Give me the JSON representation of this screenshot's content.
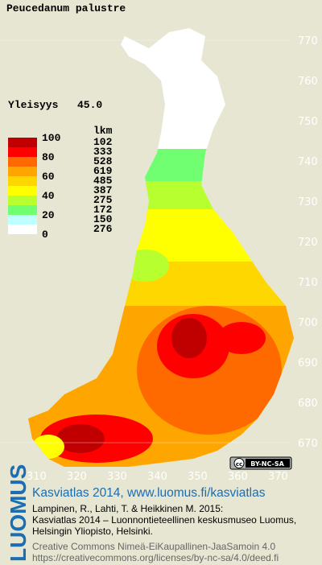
{
  "title": "Peucedanum palustre",
  "frequency": {
    "label": "Yleisyys",
    "value": "45.0"
  },
  "legend": {
    "count_header": "lkm",
    "scale_labels": [
      100,
      80,
      60,
      40,
      20,
      0
    ],
    "classes": [
      {
        "color": "#c00000",
        "count": 102
      },
      {
        "color": "#ff0000",
        "count": 333
      },
      {
        "color": "#ff6a00",
        "count": 528
      },
      {
        "color": "#ffa500",
        "count": 619
      },
      {
        "color": "#ffd700",
        "count": 485
      },
      {
        "color": "#ffff00",
        "count": 387
      },
      {
        "color": "#b8ff30",
        "count": 275
      },
      {
        "color": "#70ff70",
        "count": 172
      },
      {
        "color": "#c0ffff",
        "count": 150
      },
      {
        "color": "#ffffff",
        "count": 276
      }
    ]
  },
  "grid": {
    "northing": [
      770,
      760,
      750,
      740,
      730,
      720,
      710,
      700,
      690,
      680,
      670
    ],
    "easting": [
      310,
      320,
      330,
      340,
      350,
      360,
      370
    ]
  },
  "license_badge": "BY-NC-SA",
  "logo": "LUOMUS",
  "footer": {
    "heading": "Kasviatlas 2014, www.luomus.fi/kasviatlas",
    "citation": [
      "Lampinen, R., Lahti, T. & Heikkinen M. 2015:",
      "Kasviatlas 2014 – Luonnontieteellinen keskusmuseo Luomus,",
      "Helsingin Yliopisto, Helsinki."
    ],
    "license": [
      "Creative Commons Nimeä-EiKaupallinen-JaaSamoin 4.0",
      "https://creativecommons.org/licenses/by-nc-sa/4.0/deed.fi"
    ]
  }
}
